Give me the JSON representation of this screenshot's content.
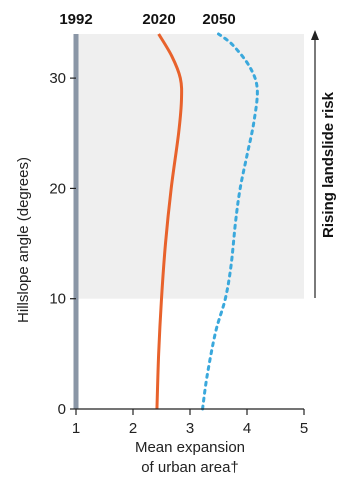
{
  "chart_data": {
    "type": "line",
    "orientation": "vertical-profile",
    "xlabel_lines": [
      "Mean expansion",
      "of urban area†"
    ],
    "ylabel": "Hillslope angle (degrees)",
    "xlim": [
      1,
      5
    ],
    "ylim": [
      0,
      34
    ],
    "x_ticks": [
      "1",
      "2",
      "3",
      "4",
      "5"
    ],
    "x_tick_values": [
      1,
      2,
      3,
      4,
      5
    ],
    "y_ticks": [
      "0",
      "10",
      "20",
      "30"
    ],
    "y_tick_values": [
      0,
      10,
      20,
      30
    ],
    "shaded_region": {
      "y_from": 10,
      "y_to": 34,
      "color": "#efefef"
    },
    "annotation": "Rising landslide risk",
    "grid": false,
    "series": [
      {
        "name": "1992",
        "color": "#8a96a6",
        "style": "solid",
        "points": [
          [
            1.0,
            0
          ],
          [
            1.0,
            34
          ]
        ]
      },
      {
        "name": "2020",
        "color": "#e8622c",
        "style": "solid",
        "points": [
          [
            2.42,
            0
          ],
          [
            2.45,
            5
          ],
          [
            2.5,
            10
          ],
          [
            2.57,
            15
          ],
          [
            2.67,
            20
          ],
          [
            2.8,
            25
          ],
          [
            2.85,
            28
          ],
          [
            2.83,
            30
          ],
          [
            2.68,
            32
          ],
          [
            2.45,
            34
          ]
        ]
      },
      {
        "name": "2050",
        "color": "#3aa8dc",
        "style": "dashed",
        "points": [
          [
            3.22,
            0
          ],
          [
            3.3,
            3
          ],
          [
            3.45,
            7
          ],
          [
            3.62,
            10
          ],
          [
            3.72,
            13
          ],
          [
            3.8,
            17
          ],
          [
            3.88,
            20
          ],
          [
            4.0,
            23
          ],
          [
            4.12,
            26
          ],
          [
            4.18,
            29
          ],
          [
            4.05,
            31
          ],
          [
            3.75,
            33
          ],
          [
            3.5,
            34
          ]
        ]
      }
    ]
  }
}
